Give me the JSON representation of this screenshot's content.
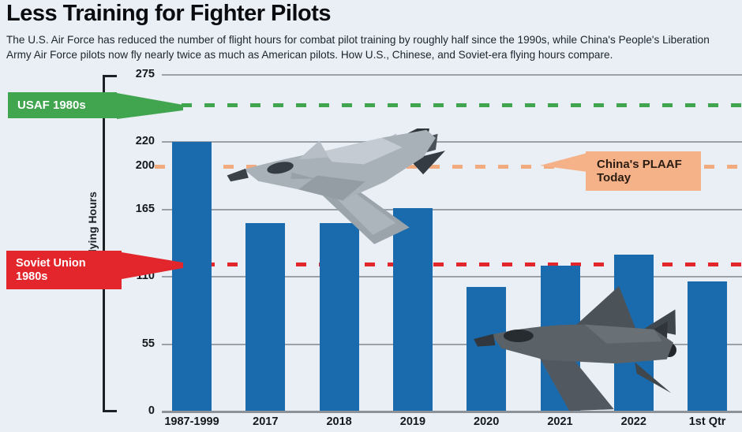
{
  "header": {
    "title": "Less Training for Fighter Pilots",
    "subtitle": "The U.S. Air Force has reduced the number of flight hours for combat pilot training by roughly half since the 1990s, while China's People's Liberation Army Air Force pilots now fly nearly twice as much as American pilots. How U.S., Chinese, and Soviet-era flying hours compare."
  },
  "chart_data": {
    "type": "bar",
    "title": "Less Training for Fighter Pilots",
    "ylabel": "Pilot Flying Hours",
    "xlabel": "",
    "categories": [
      "1987-1999",
      "2017",
      "2018",
      "2019",
      "2020",
      "2021",
      "2022",
      "1st Qtr"
    ],
    "values": [
      220,
      154,
      154,
      166,
      102,
      119,
      128,
      106
    ],
    "yticks": [
      275,
      220,
      200,
      165,
      110,
      55,
      0
    ],
    "ylim": [
      0,
      275
    ],
    "grid": true,
    "legend_position": "none",
    "bar_color": "#1a6bad",
    "reference_lines": [
      {
        "name": "USAF 1980s",
        "value": 250,
        "color": "#41a44e",
        "style": "dashed"
      },
      {
        "name": "China's PLAAF Today",
        "value": 200,
        "color": "#f2ab7e",
        "style": "dashed"
      },
      {
        "name": "Soviet Union 1980s",
        "value": 120,
        "color": "#e2262b",
        "style": "dashed"
      }
    ]
  },
  "annotations": {
    "usaf": {
      "label": "USAF 1980s"
    },
    "china": {
      "label_line1": "China's PLAAF",
      "label_line2": "Today"
    },
    "soviet": {
      "label_line1": "Soviet Union",
      "label_line2": "1980s"
    }
  },
  "colors": {
    "background": "#e9eff5",
    "bar": "#1a6bad",
    "green": "#41a44e",
    "red": "#e2262b",
    "peach": "#f5b289",
    "peach_line": "#f2ab7e",
    "grid": "#9aa1a9",
    "axis_line": "#8d9298",
    "bracket": "#1d2126",
    "title": "#0a0c10"
  }
}
